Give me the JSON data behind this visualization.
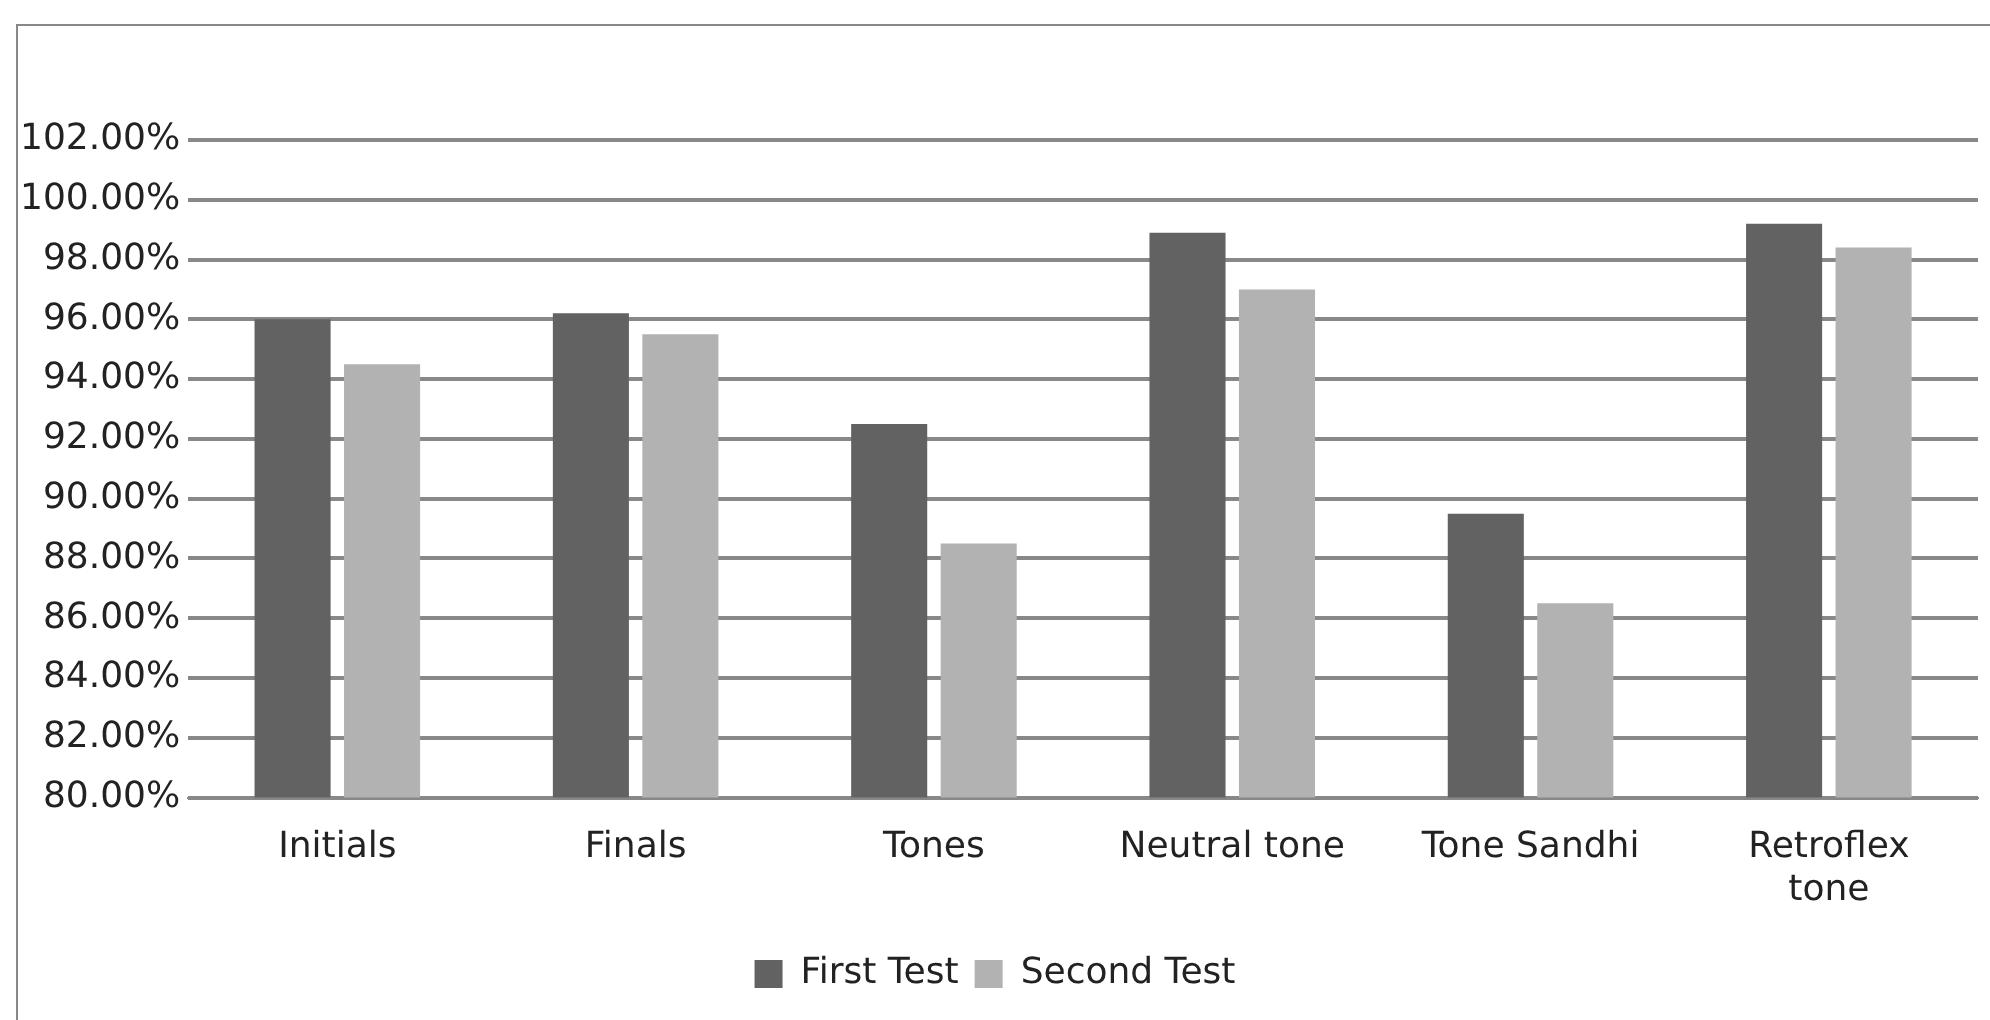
{
  "chart_data": {
    "type": "bar",
    "categories": [
      "Initials",
      "Finals",
      "Tones",
      "Neutral tone",
      "Tone Sandhi",
      "Retroflex tone"
    ],
    "series": [
      {
        "name": "First Test",
        "color": "#626262",
        "values": [
          96.0,
          96.2,
          92.5,
          98.9,
          89.5,
          99.2
        ]
      },
      {
        "name": "Second Test",
        "color": "#b2b2b2",
        "values": [
          94.5,
          95.5,
          88.5,
          97.0,
          86.5,
          98.4
        ]
      }
    ],
    "ylim": [
      80,
      102
    ],
    "yticks": [
      {
        "value": 80,
        "label": "80.00%"
      },
      {
        "value": 82,
        "label": "82.00%"
      },
      {
        "value": 84,
        "label": "84.00%"
      },
      {
        "value": 86,
        "label": "86.00%"
      },
      {
        "value": 88,
        "label": "88.00%"
      },
      {
        "value": 90,
        "label": "90.00%"
      },
      {
        "value": 92,
        "label": "92.00%"
      },
      {
        "value": 94,
        "label": "94.00%"
      },
      {
        "value": 96,
        "label": "96.00%"
      },
      {
        "value": 98,
        "label": "98.00%"
      },
      {
        "value": 100,
        "label": "100.00%"
      },
      {
        "value": 102,
        "label": "102.00%"
      }
    ],
    "grid": "y",
    "legend": "bottom"
  }
}
